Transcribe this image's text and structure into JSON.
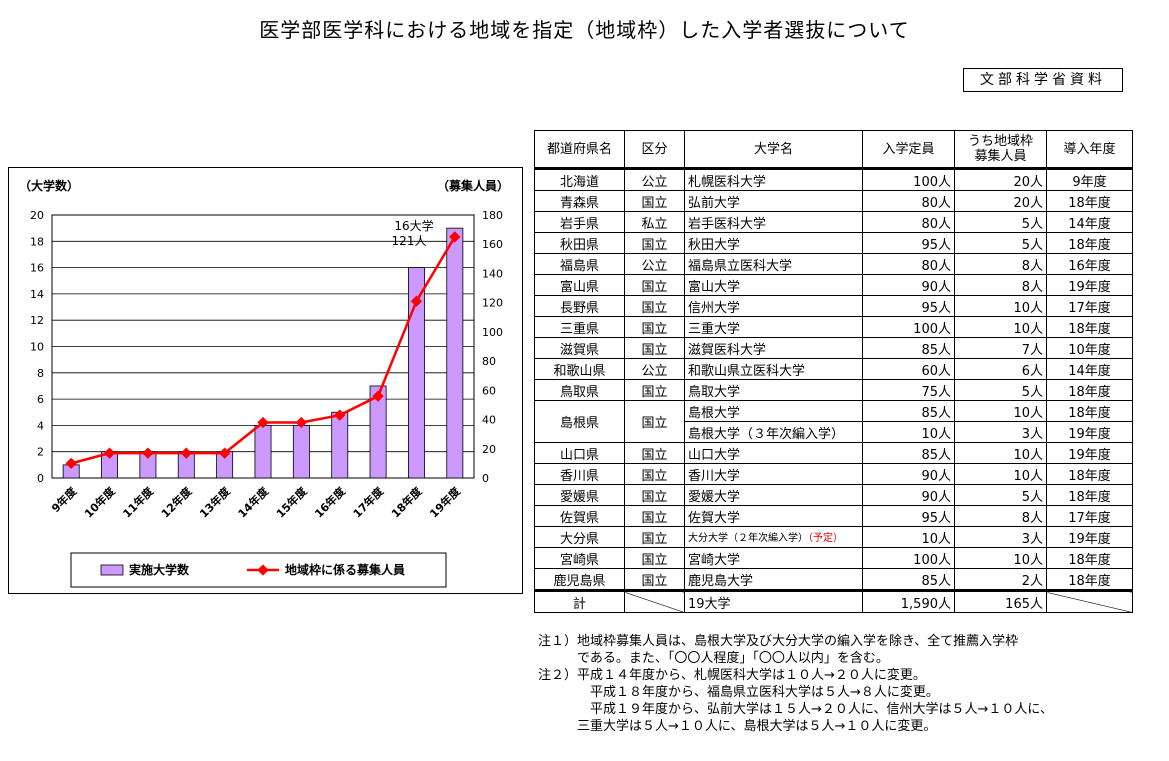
{
  "title": "医学部医学科における地域を指定（地域枠）した入学者選抜について",
  "source": "文部科学省資料",
  "chart_data": {
    "type": "bar+line",
    "categories": [
      "9年度",
      "10年度",
      "11年度",
      "12年度",
      "13年度",
      "14年度",
      "15年度",
      "16年度",
      "17年度",
      "18年度",
      "19年度"
    ],
    "series": [
      {
        "name": "実施大学数",
        "type": "bar",
        "axis": "left",
        "values": [
          1,
          2,
          2,
          2,
          2,
          4,
          4,
          5,
          7,
          16,
          19
        ]
      },
      {
        "name": "地域枠に係る募集人員",
        "type": "line",
        "axis": "right",
        "values": [
          10,
          17,
          17,
          17,
          17,
          38,
          38,
          43,
          56,
          121,
          165
        ]
      }
    ],
    "ylabel_left": "（大学数）",
    "ylabel_right": "（募集人員）",
    "ylim_left": [
      0,
      20
    ],
    "ylim_right": [
      0,
      180
    ],
    "yticks_left": [
      0,
      2,
      4,
      6,
      8,
      10,
      12,
      14,
      16,
      18,
      20
    ],
    "yticks_right": [
      0,
      20,
      40,
      60,
      80,
      100,
      120,
      140,
      160,
      180
    ],
    "annotation_line1": "16大学",
    "annotation_line2": "121人",
    "colors": {
      "bar": "#cc99ff",
      "line": "#ff0000"
    },
    "legend_position": "bottom",
    "grid": "horizontal"
  },
  "table": {
    "headers": [
      "都道府県名",
      "区分",
      "大学名",
      "入学定員",
      "うち地域枠募集人員",
      "導入年度"
    ],
    "header_wrap": [
      "うち地域枠",
      "募集人員"
    ],
    "rows": [
      {
        "pref": "北海道",
        "type": "公立",
        "univ": "札幌医科大学",
        "cap": "100人",
        "quota": "20人",
        "year": "9年度"
      },
      {
        "pref": "青森県",
        "type": "国立",
        "univ": "弘前大学",
        "cap": "80人",
        "quota": "20人",
        "year": "18年度"
      },
      {
        "pref": "岩手県",
        "type": "私立",
        "univ": "岩手医科大学",
        "cap": "80人",
        "quota": "5人",
        "year": "14年度"
      },
      {
        "pref": "秋田県",
        "type": "国立",
        "univ": "秋田大学",
        "cap": "95人",
        "quota": "5人",
        "year": "18年度"
      },
      {
        "pref": "福島県",
        "type": "公立",
        "univ": "福島県立医科大学",
        "cap": "80人",
        "quota": "8人",
        "year": "16年度"
      },
      {
        "pref": "富山県",
        "type": "国立",
        "univ": "富山大学",
        "cap": "90人",
        "quota": "8人",
        "year": "19年度"
      },
      {
        "pref": "長野県",
        "type": "国立",
        "univ": "信州大学",
        "cap": "95人",
        "quota": "10人",
        "year": "17年度"
      },
      {
        "pref": "三重県",
        "type": "国立",
        "univ": "三重大学",
        "cap": "100人",
        "quota": "10人",
        "year": "18年度"
      },
      {
        "pref": "滋賀県",
        "type": "国立",
        "univ": "滋賀医科大学",
        "cap": "85人",
        "quota": "7人",
        "year": "10年度"
      },
      {
        "pref": "和歌山県",
        "type": "公立",
        "univ": "和歌山県立医科大学",
        "cap": "60人",
        "quota": "6人",
        "year": "14年度"
      },
      {
        "pref": "鳥取県",
        "type": "国立",
        "univ": "鳥取大学",
        "cap": "75人",
        "quota": "5人",
        "year": "18年度"
      }
    ],
    "shimane": {
      "pref": "島根県",
      "type": "国立",
      "rows": [
        {
          "univ": "島根大学",
          "cap": "85人",
          "quota": "10人",
          "year": "18年度"
        },
        {
          "univ": "島根大学（３年次編入学）",
          "cap": "10人",
          "quota": "3人",
          "year": "19年度"
        }
      ]
    },
    "rows2": [
      {
        "pref": "山口県",
        "type": "国立",
        "univ": "山口大学",
        "cap": "85人",
        "quota": "10人",
        "year": "19年度"
      },
      {
        "pref": "香川県",
        "type": "国立",
        "univ": "香川大学",
        "cap": "90人",
        "quota": "10人",
        "year": "18年度"
      },
      {
        "pref": "愛媛県",
        "type": "国立",
        "univ": "愛媛大学",
        "cap": "90人",
        "quota": "5人",
        "year": "18年度"
      },
      {
        "pref": "佐賀県",
        "type": "国立",
        "univ": "佐賀大学",
        "cap": "95人",
        "quota": "8人",
        "year": "17年度"
      }
    ],
    "oita": {
      "pref": "大分県",
      "type": "国立",
      "univ": "大分大学（２年次編入学）",
      "plan": "（予定）",
      "cap": "10人",
      "quota": "3人",
      "year": "19年度"
    },
    "rows3": [
      {
        "pref": "宮崎県",
        "type": "国立",
        "univ": "宮崎大学",
        "cap": "100人",
        "quota": "10人",
        "year": "18年度"
      },
      {
        "pref": "鹿児島県",
        "type": "国立",
        "univ": "鹿児島大学",
        "cap": "85人",
        "quota": "2人",
        "year": "18年度"
      }
    ],
    "total": {
      "label": "計",
      "univ": "19大学",
      "cap": "1,590人",
      "quota": "165人"
    }
  },
  "notes": [
    "注１）地域枠募集人員は、島根大学及び大分大学の編入学を除き、全て推薦入学枠",
    "　　　である。また、「〇〇人程度」「〇〇人以内」を含む。",
    "注２）平成１４年度から、札幌医科大学は１０人→２０人に変更。",
    "　　　　平成１８年度から、福島県立医科大学は５人→８人に変更。",
    "　　　　平成１９年度から、弘前大学は１５人→２０人に、信州大学は５人→１０人に、",
    "　　　三重大学は５人→１０人に、島根大学は５人→１０人に変更。"
  ]
}
